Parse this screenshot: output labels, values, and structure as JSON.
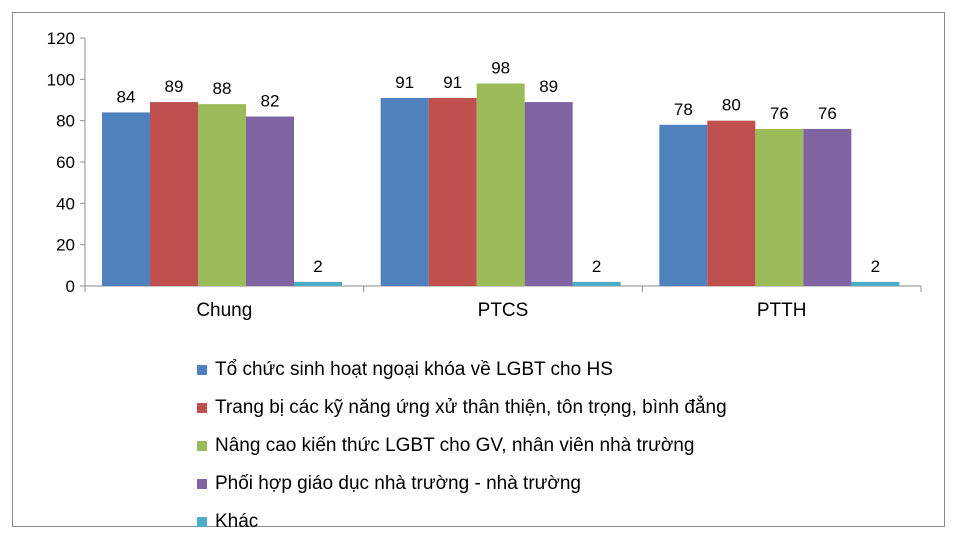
{
  "chart_data": {
    "type": "bar",
    "title": "",
    "xlabel": "",
    "ylabel": "",
    "ylim": [
      0,
      120
    ],
    "yticks": [
      0,
      20,
      40,
      60,
      80,
      100,
      120
    ],
    "grid": false,
    "legend_position": "bottom",
    "categories": [
      "Chung",
      "PTCS",
      "PTTH"
    ],
    "series": [
      {
        "name": "Tổ chức sinh hoạt ngoại khóa về LGBT cho HS",
        "color": "#4F81BD",
        "values": [
          84,
          91,
          78
        ]
      },
      {
        "name": "Trang bị các kỹ năng ứng xử thân thiện, tôn trọng, bình đẳng",
        "color": "#C0504D",
        "values": [
          89,
          91,
          80
        ]
      },
      {
        "name": "Nâng cao kiến thức LGBT cho GV, nhân viên nhà trường",
        "color": "#9BBB59",
        "values": [
          88,
          98,
          76
        ]
      },
      {
        "name": "Phối hợp giáo dục nhà trường - nhà trường",
        "color": "#8064A2",
        "values": [
          82,
          89,
          76
        ]
      },
      {
        "name": "Khác",
        "color": "#4BACC6",
        "values": [
          2,
          2,
          2
        ]
      }
    ]
  }
}
